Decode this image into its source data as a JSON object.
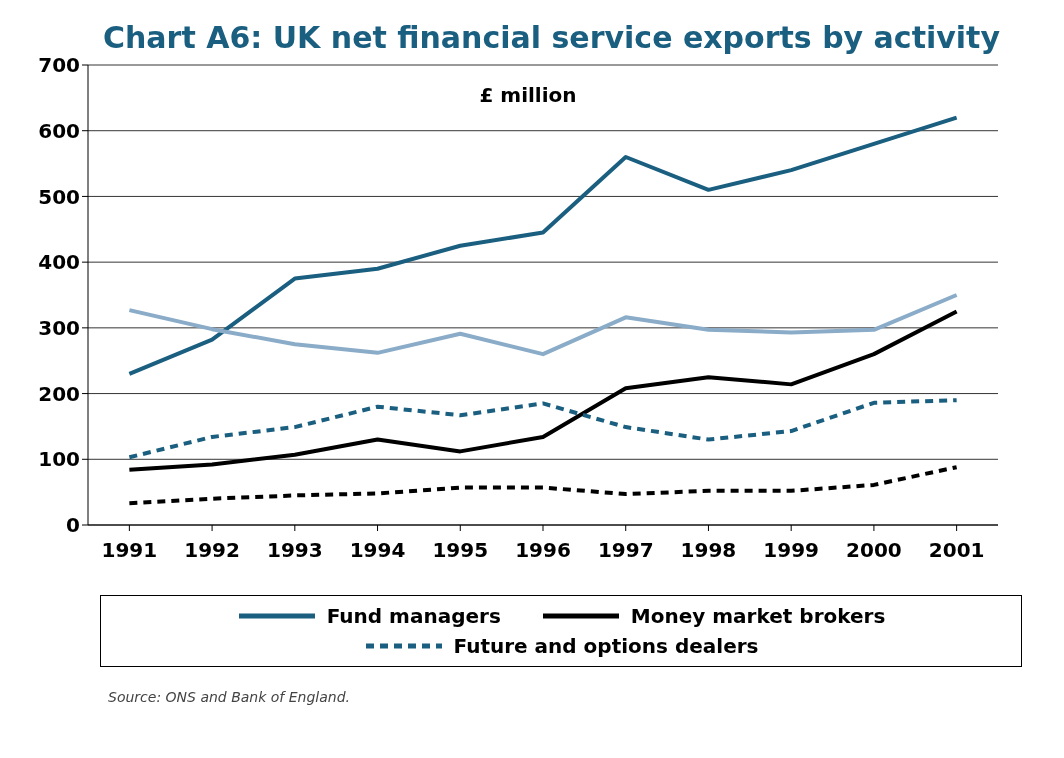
{
  "chart_data": {
    "type": "line",
    "title": "Chart A6: UK net financial service exports by activity",
    "ylabel": "£ million",
    "categories": [
      "1991",
      "1992",
      "1993",
      "1994",
      "1995",
      "1996",
      "1997",
      "1998",
      "1999",
      "2000",
      "2001"
    ],
    "series": [
      {
        "name": "Fund managers",
        "color": "#1a5e80",
        "line_style": "solid",
        "values": [
          230,
          282,
          375,
          390,
          425,
          445,
          560,
          510,
          540,
          580,
          620
        ]
      },
      {
        "color": "#8aacc8",
        "line_style": "solid",
        "values": [
          327,
          298,
          275,
          262,
          291,
          260,
          316,
          297,
          293,
          297,
          350
        ]
      },
      {
        "name": "Money market brokers",
        "color": "#000000",
        "line_style": "solid",
        "values": [
          84,
          92,
          107,
          130,
          112,
          134,
          208,
          225,
          214,
          260,
          325
        ]
      },
      {
        "name": "Future and options dealers",
        "color": "#1a5e80",
        "line_style": "dashed",
        "values": [
          103,
          134,
          149,
          180,
          167,
          185,
          149,
          130,
          143,
          186,
          190
        ]
      },
      {
        "color": "#000000",
        "line_style": "dashed",
        "values": [
          33,
          40,
          45,
          48,
          57,
          57,
          47,
          52,
          52,
          61,
          88
        ]
      }
    ],
    "ylim": [
      0,
      700
    ],
    "yticks": [
      0,
      100,
      200,
      300,
      400,
      500,
      600,
      700
    ],
    "grid": "y",
    "legend": "bottom",
    "marker": "none",
    "annotations": [
      "Source: ONS and Bank of England."
    ]
  }
}
